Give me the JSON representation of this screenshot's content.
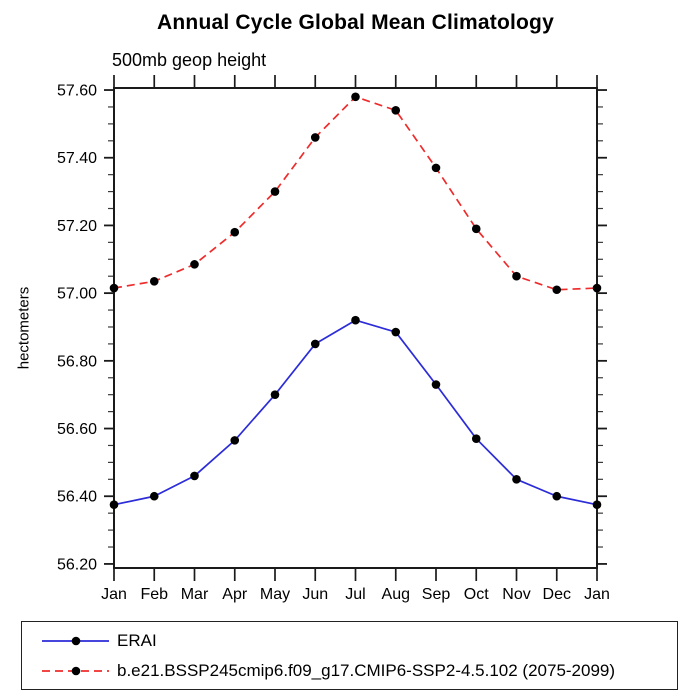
{
  "chart_data": {
    "type": "line",
    "title": "Annual Cycle Global Mean Climatology",
    "subtitle": "500mb geop height",
    "ylabel": "hectometers",
    "categories": [
      "Jan",
      "Feb",
      "Mar",
      "Apr",
      "May",
      "Jun",
      "Jul",
      "Aug",
      "Sep",
      "Oct",
      "Nov",
      "Dec",
      "Jan"
    ],
    "y_tick_labels": [
      "56.20",
      "56.40",
      "56.60",
      "56.80",
      "57.00",
      "57.20",
      "57.40",
      "57.60"
    ],
    "y_major_ticks": [
      56.2,
      56.4,
      56.6,
      56.8,
      57.0,
      57.2,
      57.4,
      57.6
    ],
    "y_minor_step": 0.05,
    "ylim": [
      56.188,
      57.606
    ],
    "grid": false,
    "legend_position": "bottom-outside-box",
    "marker": {
      "shape": "circle",
      "color": "#000000"
    },
    "series": [
      {
        "name": "ERAI",
        "color": "#2c2cd8",
        "line_style": "solid",
        "values": [
          56.375,
          56.4,
          56.46,
          56.565,
          56.7,
          56.85,
          56.92,
          56.885,
          56.73,
          56.57,
          56.45,
          56.4,
          56.375
        ]
      },
      {
        "name": "b.e21.BSSP245cmip6.f09_g17.CMIP6-SSP2-4.5.102 (2075-2099)",
        "color": "#ee2c2c",
        "line_style": "dashed",
        "values": [
          57.015,
          57.035,
          57.085,
          57.18,
          57.3,
          57.46,
          57.58,
          57.54,
          57.37,
          57.19,
          57.05,
          57.01,
          57.015
        ]
      }
    ]
  }
}
